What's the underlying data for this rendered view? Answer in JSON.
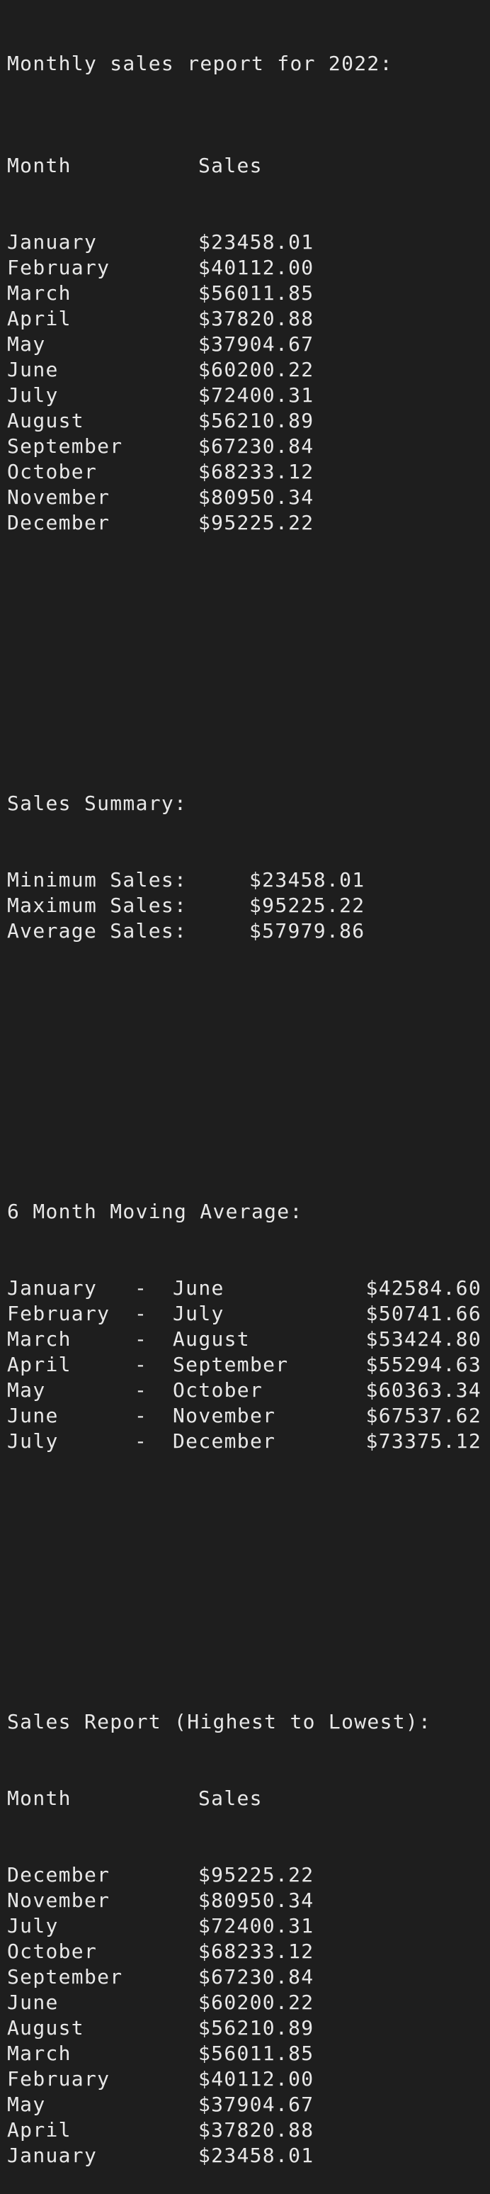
{
  "title": "Monthly sales report for 2022:",
  "monthly_table": {
    "header": {
      "month": "Month",
      "sales": "Sales"
    },
    "rows": [
      {
        "month": "January",
        "sales": "$23458.01"
      },
      {
        "month": "February",
        "sales": "$40112.00"
      },
      {
        "month": "March",
        "sales": "$56011.85"
      },
      {
        "month": "April",
        "sales": "$37820.88"
      },
      {
        "month": "May",
        "sales": "$37904.67"
      },
      {
        "month": "June",
        "sales": "$60200.22"
      },
      {
        "month": "July",
        "sales": "$72400.31"
      },
      {
        "month": "August",
        "sales": "$56210.89"
      },
      {
        "month": "September",
        "sales": "$67230.84"
      },
      {
        "month": "October",
        "sales": "$68233.12"
      },
      {
        "month": "November",
        "sales": "$80950.34"
      },
      {
        "month": "December",
        "sales": "$95225.22"
      }
    ]
  },
  "summary": {
    "title": "Sales Summary:",
    "items": [
      {
        "label": "Minimum Sales:",
        "value": "$23458.01"
      },
      {
        "label": "Maximum Sales:",
        "value": "$95225.22"
      },
      {
        "label": "Average Sales:",
        "value": "$57979.86"
      }
    ]
  },
  "moving_average": {
    "title": "6 Month Moving Average:",
    "rows": [
      {
        "from": "January",
        "dash": "-",
        "to": "June",
        "value": "$42584.60"
      },
      {
        "from": "February",
        "dash": "-",
        "to": "July",
        "value": "$50741.66"
      },
      {
        "from": "March",
        "dash": "-",
        "to": "August",
        "value": "$53424.80"
      },
      {
        "from": "April",
        "dash": "-",
        "to": "September",
        "value": "$55294.63"
      },
      {
        "from": "May",
        "dash": "-",
        "to": "October",
        "value": "$60363.34"
      },
      {
        "from": "June",
        "dash": "-",
        "to": "November",
        "value": "$67537.62"
      },
      {
        "from": "July",
        "dash": "-",
        "to": "December",
        "value": "$73375.12"
      }
    ]
  },
  "sorted_report": {
    "title": "Sales Report (Highest to Lowest):",
    "header": {
      "month": "Month",
      "sales": "Sales"
    },
    "rows": [
      {
        "month": "December",
        "sales": "$95225.22"
      },
      {
        "month": "November",
        "sales": "$80950.34"
      },
      {
        "month": "July",
        "sales": "$72400.31"
      },
      {
        "month": "October",
        "sales": "$68233.12"
      },
      {
        "month": "September",
        "sales": "$67230.84"
      },
      {
        "month": "June",
        "sales": "$60200.22"
      },
      {
        "month": "August",
        "sales": "$56210.89"
      },
      {
        "month": "March",
        "sales": "$56011.85"
      },
      {
        "month": "February",
        "sales": "$40112.00"
      },
      {
        "month": "May",
        "sales": "$37904.67"
      },
      {
        "month": "April",
        "sales": "$37820.88"
      },
      {
        "month": "January",
        "sales": "$23458.01"
      }
    ]
  }
}
